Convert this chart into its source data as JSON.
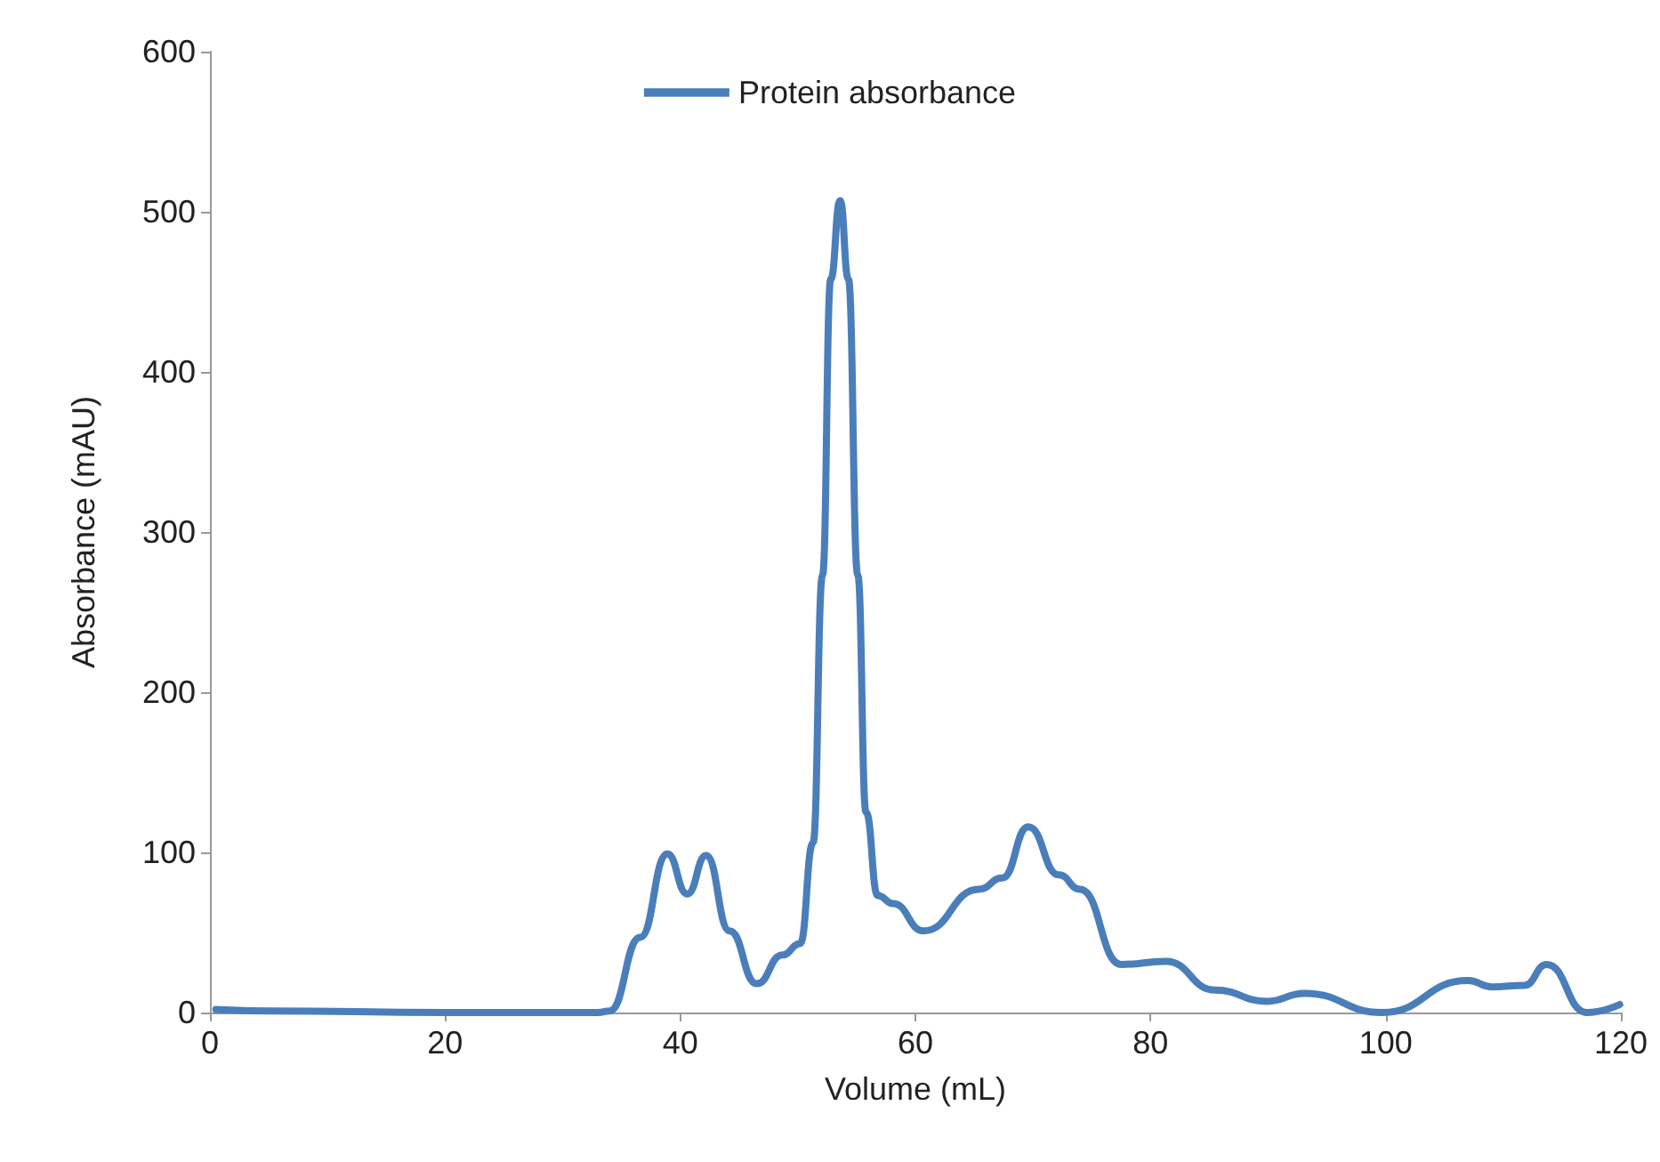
{
  "chart_data": {
    "type": "line",
    "xlabel": "Volume (mL)",
    "ylabel": "Absorbance (mAU)",
    "xlim": [
      0,
      120
    ],
    "xticks": [
      0,
      20,
      40,
      60,
      80,
      100,
      120
    ],
    "ylim": [
      0,
      600
    ],
    "yticks": [
      0,
      100,
      200,
      300,
      400,
      500,
      600
    ],
    "grid": false,
    "legend": "top",
    "marker": "none",
    "line_style": "solid",
    "series": [
      {
        "name": "Protein absorbance",
        "color": "#4a7ebb",
        "x": [
          0.5,
          5,
          20,
          33,
          34,
          36.6,
          38.9,
          40.6,
          42.2,
          44.2,
          46.5,
          48.7,
          50.2,
          51.3,
          52.1,
          52.8,
          53.6,
          54.3,
          55.1,
          55.8,
          56.8,
          58.1,
          60.7,
          65.4,
          67.4,
          69.6,
          72.2,
          74,
          77.5,
          81.3,
          85.5,
          89.9,
          93.1,
          99.7,
          107,
          109,
          111.8,
          113.7,
          117.1,
          119.9
        ],
        "values": [
          2,
          1,
          0,
          0,
          1,
          47,
          99,
          74,
          98,
          51,
          18,
          36,
          43,
          106,
          273,
          458,
          507,
          458,
          273,
          125,
          73,
          68,
          51,
          77,
          84,
          116,
          86,
          77,
          30,
          32,
          14,
          7,
          12,
          0,
          20,
          16,
          17,
          30,
          0,
          5
        ]
      }
    ]
  }
}
